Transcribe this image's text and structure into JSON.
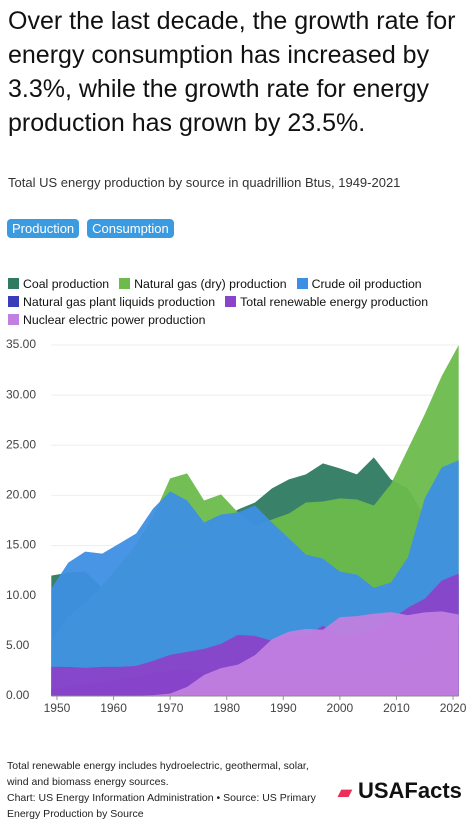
{
  "chart_data": {
    "type": "area",
    "title": "Over the last decade, the growth rate for energy consumption has increased by 3.3%, while the growth rate for energy production has grown by 23.5%.",
    "subtitle": "Total US energy production by source in quadrillion Btus, 1949-2021",
    "x": [
      1949,
      1952,
      1955,
      1958,
      1961,
      1964,
      1967,
      1970,
      1973,
      1976,
      1979,
      1982,
      1985,
      1988,
      1991,
      1994,
      1997,
      2000,
      2003,
      2006,
      2009,
      2012,
      2015,
      2018,
      2021
    ],
    "xlim": [
      1949,
      2021
    ],
    "xticks": [
      1950,
      1960,
      1970,
      1980,
      1990,
      2000,
      2010,
      2020
    ],
    "ylim": [
      0,
      35
    ],
    "yticks": [
      {
        "value": 0,
        "label": "0.00"
      },
      {
        "value": 5,
        "label": "5.00"
      },
      {
        "value": 10,
        "label": "10.00"
      },
      {
        "value": 15,
        "label": "15.00"
      },
      {
        "value": 20,
        "label": "20.00"
      },
      {
        "value": 25,
        "label": "25.00"
      },
      {
        "value": 30,
        "label": "30.00"
      },
      {
        "value": 35,
        "label": "35.00"
      }
    ],
    "series": [
      {
        "name": "Coal production",
        "color": "#2f7a62",
        "values": [
          12.0,
          12.3,
          12.4,
          10.8,
          10.4,
          13.0,
          14.3,
          14.6,
          14.0,
          15.7,
          17.5,
          18.6,
          19.3,
          20.7,
          21.6,
          22.1,
          23.2,
          22.7,
          22.1,
          23.8,
          21.6,
          20.7,
          17.9,
          15.4,
          11.6
        ]
      },
      {
        "name": "Natural gas (dry) production",
        "color": "#6cbb4c",
        "values": [
          5.4,
          7.9,
          9.3,
          11.0,
          13.0,
          15.1,
          17.9,
          21.7,
          22.2,
          19.5,
          20.1,
          18.3,
          17.0,
          17.6,
          18.2,
          19.3,
          19.4,
          19.7,
          19.6,
          19.0,
          21.1,
          24.6,
          28.1,
          31.9,
          35.0
        ]
      },
      {
        "name": "Crude oil production",
        "color": "#3d8fe3",
        "values": [
          10.7,
          13.3,
          14.4,
          14.2,
          15.2,
          16.2,
          18.7,
          20.4,
          19.5,
          17.3,
          18.1,
          18.3,
          19.0,
          17.3,
          15.7,
          14.1,
          13.7,
          12.4,
          12.1,
          10.8,
          11.3,
          13.8,
          19.7,
          22.8,
          23.5
        ]
      },
      {
        "name": "Natural gas plant liquids production",
        "color": "#3a3db8",
        "values": [
          0.7,
          1.0,
          1.2,
          1.4,
          1.7,
          1.9,
          2.3,
          2.5,
          2.6,
          2.3,
          2.3,
          2.2,
          2.2,
          2.3,
          2.3,
          2.4,
          2.5,
          2.6,
          2.3,
          2.4,
          2.6,
          3.4,
          4.5,
          6.2,
          7.0
        ]
      },
      {
        "name": "Total renewable energy production",
        "color": "#8b43c9",
        "values": [
          2.9,
          2.9,
          2.8,
          2.9,
          2.9,
          3.0,
          3.5,
          4.1,
          4.4,
          4.7,
          5.2,
          6.1,
          6.0,
          5.5,
          6.1,
          6.0,
          7.0,
          6.1,
          6.1,
          6.6,
          7.6,
          8.8,
          9.7,
          11.5,
          12.2
        ]
      },
      {
        "name": "Nuclear electric power production",
        "color": "#c17fe0",
        "values": [
          0,
          0,
          0,
          0,
          0.02,
          0.04,
          0.09,
          0.24,
          0.91,
          2.11,
          2.78,
          3.13,
          4.08,
          5.66,
          6.42,
          6.69,
          6.6,
          7.86,
          7.96,
          8.21,
          8.36,
          8.06,
          8.34,
          8.44,
          8.13
        ]
      }
    ]
  },
  "buttons": [
    "Production",
    "Consumption"
  ],
  "footnote": "Total renewable energy includes hydroelectric, geothermal, solar, wind and biomass energy sources.",
  "source": "Chart: US Energy Information Administration • Source: US Primary Energy Production by Source",
  "logo": "USAFacts"
}
